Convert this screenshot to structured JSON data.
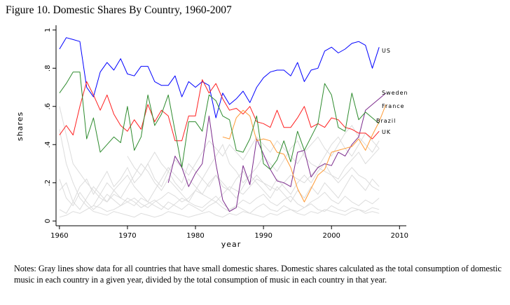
{
  "figure_title": "Figure 10. Domestic Shares By Country, 1960-2007",
  "notes": "Notes: Gray lines show data for all countries that have small domestic shares.  Domestic shares calculated as the total consumption of domestic music in each country in a given year, divided by the total consumption of music in each country in that year.",
  "chart_data": {
    "type": "line",
    "xlabel": "year",
    "ylabel": "shares",
    "xlim": [
      1959.5,
      2011
    ],
    "ylim": [
      -0.025,
      1.025
    ],
    "xticks": [
      1960,
      1970,
      1980,
      1990,
      2000,
      2010
    ],
    "yticks": [
      0,
      0.2,
      0.4,
      0.6,
      0.8,
      1
    ],
    "ytick_labels": [
      "0",
      ".2",
      ".4",
      ".6",
      ".8",
      "1"
    ],
    "series": [
      {
        "name": "US",
        "color": "#0000ff",
        "start": 1960,
        "values": [
          0.9,
          0.96,
          0.95,
          0.94,
          0.7,
          0.65,
          0.78,
          0.83,
          0.79,
          0.85,
          0.77,
          0.76,
          0.81,
          0.81,
          0.73,
          0.71,
          0.71,
          0.76,
          0.65,
          0.73,
          0.7,
          0.73,
          0.71,
          0.54,
          0.67,
          0.61,
          0.64,
          0.68,
          0.62,
          0.7,
          0.75,
          0.78,
          0.79,
          0.79,
          0.76,
          0.83,
          0.73,
          0.79,
          0.8,
          0.89,
          0.91,
          0.88,
          0.9,
          0.93,
          0.94,
          0.92,
          0.8,
          0.91
        ]
      },
      {
        "name": "Sweden",
        "color": "#7b2a8c",
        "start": 1976,
        "values": [
          0.2,
          0.34,
          0.28,
          0.18,
          0.25,
          0.3,
          0.55,
          0.3,
          0.11,
          0.05,
          0.07,
          0.29,
          0.19,
          0.43,
          0.35,
          0.27,
          0.21,
          0.2,
          0.18,
          0.36,
          0.37,
          0.23,
          0.28,
          0.3,
          0.29,
          0.36,
          0.34,
          0.4,
          0.44,
          0.58,
          0.61,
          0.64,
          0.67
        ]
      },
      {
        "name": "France",
        "color": "#ff2020",
        "start": 1960,
        "values": [
          0.45,
          0.5,
          0.45,
          0.6,
          0.73,
          0.66,
          0.58,
          0.66,
          0.56,
          0.5,
          0.47,
          0.53,
          0.48,
          0.61,
          0.52,
          0.58,
          0.55,
          0.42,
          0.42,
          0.55,
          0.55,
          0.74,
          0.67,
          0.72,
          0.64,
          0.58,
          0.59,
          0.56,
          0.6,
          0.52,
          0.51,
          0.49,
          0.58,
          0.49,
          0.49,
          0.54,
          0.6,
          0.49,
          0.51,
          0.49,
          0.54,
          0.53,
          0.49,
          0.48,
          0.46,
          0.46,
          0.43,
          0.47
        ]
      },
      {
        "name": "Brazil",
        "color": "#ff9933",
        "start": 1984,
        "values": [
          0.44,
          0.43,
          0.54,
          0.58,
          0.55,
          0.42,
          0.43,
          0.42,
          0.36,
          0.35,
          0.28,
          0.17,
          0.1,
          0.17,
          0.24,
          0.27,
          0.36,
          0.37,
          0.38,
          0.39,
          0.43,
          0.37,
          0.45,
          0.52,
          0.61
        ]
      },
      {
        "name": "UK",
        "color": "#2e8b2e",
        "start": 1960,
        "values": [
          0.67,
          0.72,
          0.78,
          0.78,
          0.43,
          0.54,
          0.36,
          0.4,
          0.44,
          0.41,
          0.6,
          0.37,
          0.44,
          0.66,
          0.5,
          0.56,
          0.66,
          0.47,
          0.28,
          0.52,
          0.52,
          0.47,
          0.66,
          0.63,
          0.55,
          0.53,
          0.37,
          0.36,
          0.43,
          0.55,
          0.3,
          0.27,
          0.32,
          0.42,
          0.31,
          0.47,
          0.37,
          0.44,
          0.51,
          0.72,
          0.66,
          0.49,
          0.47,
          0.67,
          0.53,
          0.57,
          0.54,
          0.51
        ]
      }
    ],
    "series_labels": [
      "US",
      "Sweden",
      "France",
      "Brazil",
      "UK"
    ],
    "background_gray_series": [
      {
        "start": 1960,
        "values": [
          0.22,
          0.12,
          0.08,
          0.15,
          0.1,
          0.06,
          0.09,
          0.14,
          0.11,
          0.08,
          0.12,
          0.1,
          0.07,
          0.09,
          0.11,
          0.08,
          0.06,
          0.09,
          0.12,
          0.1,
          0.08,
          0.07,
          0.1,
          0.13,
          0.09,
          0.06,
          0.08,
          0.11,
          0.09,
          0.12,
          0.14,
          0.1,
          0.08,
          0.11,
          0.13,
          0.09,
          0.07,
          0.1,
          0.12,
          0.15,
          0.11,
          0.09,
          0.13,
          0.1,
          0.08,
          0.11,
          0.09,
          0.12
        ]
      },
      {
        "start": 1960,
        "values": [
          0.06,
          0.04,
          0.1,
          0.18,
          0.22,
          0.14,
          0.2,
          0.26,
          0.18,
          0.22,
          0.28,
          0.2,
          0.24,
          0.3,
          0.22,
          0.18,
          0.26,
          0.2,
          0.16,
          0.22,
          0.18,
          0.14,
          0.2,
          0.24,
          0.18,
          0.16,
          0.22,
          0.26,
          0.2,
          0.24,
          0.2,
          0.16,
          0.22,
          0.18,
          0.14,
          0.2,
          0.24,
          0.2,
          0.26,
          0.3,
          0.24,
          0.22,
          0.28,
          0.32,
          0.36,
          0.3,
          0.34,
          0.38
        ]
      },
      {
        "start": 1960,
        "values": [
          0.16,
          0.2,
          0.1,
          0.06,
          0.12,
          0.18,
          0.14,
          0.1,
          0.16,
          0.2,
          0.24,
          0.18,
          0.14,
          0.1,
          0.16,
          0.22,
          0.28,
          0.24,
          0.2,
          0.3,
          0.26,
          0.22,
          0.28,
          0.34,
          0.4,
          0.3,
          0.26,
          0.2,
          0.24,
          0.28,
          0.34,
          0.3,
          0.26,
          0.32,
          0.38,
          0.42,
          0.34,
          0.3,
          0.28,
          0.34,
          0.4,
          0.44,
          0.38,
          0.34,
          0.4,
          0.46,
          0.42,
          0.38
        ]
      },
      {
        "start": 1960,
        "values": [
          0.48,
          0.3,
          0.2,
          0.12,
          0.08,
          0.05,
          0.04,
          0.03,
          0.05,
          0.04,
          0.03,
          0.02,
          0.04,
          0.03,
          0.02,
          0.03,
          0.05,
          0.04,
          0.03,
          0.02,
          0.03,
          0.04,
          0.05,
          0.03,
          0.02,
          0.04,
          0.03,
          0.05,
          0.04,
          0.03,
          0.02,
          0.04,
          0.03,
          0.05,
          0.06,
          0.04,
          0.03,
          0.05,
          0.04,
          0.06,
          0.05,
          0.04,
          0.03,
          0.05,
          0.06,
          0.04,
          0.05,
          0.04
        ]
      },
      {
        "start": 1965,
        "values": [
          0.08,
          0.14,
          0.2,
          0.16,
          0.12,
          0.18,
          0.24,
          0.3,
          0.26,
          0.2,
          0.16,
          0.22,
          0.18,
          0.14,
          0.1,
          0.16,
          0.22,
          0.18,
          0.24,
          0.2,
          0.16,
          0.12,
          0.18,
          0.24,
          0.2,
          0.16,
          0.12,
          0.18,
          0.14,
          0.1,
          0.16,
          0.12,
          0.18,
          0.14,
          0.2,
          0.16,
          0.12,
          0.18,
          0.24,
          0.2,
          0.16,
          0.22,
          0.18
        ]
      },
      {
        "start": 1960,
        "values": [
          0.02,
          0.03,
          0.05,
          0.04,
          0.06,
          0.08,
          0.07,
          0.05,
          0.06,
          0.08,
          0.1,
          0.12,
          0.09,
          0.07,
          0.1,
          0.12,
          0.15,
          0.13,
          0.1,
          0.12,
          0.16,
          0.14,
          0.12,
          0.1,
          0.14,
          0.18,
          0.16,
          0.14,
          0.18,
          0.22,
          0.2,
          0.18,
          0.16,
          0.2,
          0.24,
          0.22,
          0.2,
          0.24,
          0.28,
          0.26,
          0.24,
          0.2,
          0.24,
          0.28,
          0.24,
          0.22,
          0.18,
          0.16
        ]
      },
      {
        "start": 1970,
        "values": [
          0.34,
          0.28,
          0.24,
          0.3,
          0.36,
          0.3,
          0.26,
          0.32,
          0.28,
          0.24,
          0.3,
          0.36,
          0.42,
          0.38,
          0.34,
          0.4,
          0.36,
          0.32,
          0.38,
          0.44,
          0.4,
          0.36,
          0.42,
          0.38,
          0.34,
          0.3,
          0.36,
          0.4,
          0.44,
          0.38,
          0.34,
          0.4,
          0.46,
          0.5,
          0.44,
          0.4,
          0.36,
          0.42
        ]
      },
      {
        "start": 1960,
        "values": [
          0.6,
          0.45,
          0.3,
          0.25,
          0.2,
          0.16,
          0.12,
          0.1,
          0.14,
          0.12,
          0.1,
          0.08,
          0.12,
          0.1,
          0.08,
          0.06,
          0.1,
          0.08,
          0.06,
          0.09,
          0.07,
          0.05,
          0.08,
          0.1,
          0.07,
          0.05,
          0.08,
          0.06,
          0.04,
          0.07,
          0.09,
          0.06,
          0.05,
          0.08,
          0.06,
          0.05,
          0.07,
          0.09,
          0.06,
          0.05,
          0.08,
          0.06,
          0.05,
          0.07,
          0.06,
          0.05,
          0.07,
          0.06
        ]
      }
    ]
  }
}
